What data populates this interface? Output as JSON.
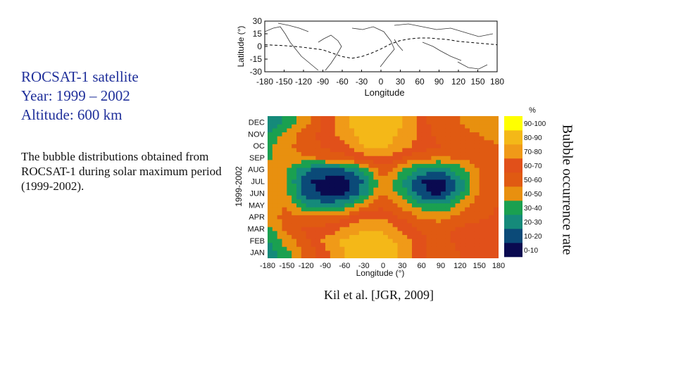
{
  "left_panel": {
    "title_lines": [
      "ROCSAT-1 satellite",
      "Year: 1999 – 2002",
      "Altitude: 600 km"
    ],
    "description": "The bubble distributions obtained from ROCSAT-1 during solar maximum period (1999-2002)."
  },
  "citation": "Kil et al. [JGR, 2009]",
  "colorbar_title": "Bubble occurrence rate",
  "colors": {
    "title_text": "#1f2f9a",
    "dip_equator": "#000000",
    "scale": [
      "#0a0a50",
      "#0b4a78",
      "#158a7a",
      "#1aa050",
      "#e8900f",
      "#e05a12",
      "#e1501a",
      "#f09a18",
      "#f4b818",
      "#ffff00"
    ]
  },
  "chart_data": [
    {
      "type": "line",
      "title": "",
      "xlabel": "Longitude",
      "ylabel": "Latitude (°)",
      "xlim": [
        -180,
        180
      ],
      "ylim": [
        -30,
        30
      ],
      "xticks": [
        "-180",
        "-150",
        "-120",
        "-90",
        "-60",
        "-30",
        "0",
        "30",
        "60",
        "90",
        "120",
        "150",
        "180"
      ],
      "yticks": [
        "30",
        "15",
        "0",
        "-15",
        "-30"
      ],
      "series": [
        {
          "x": [
            -180,
            -150,
            -120,
            -90,
            -75,
            -60,
            -45,
            -30,
            -15,
            0,
            15,
            30,
            45,
            60,
            75,
            90,
            105,
            120,
            135,
            150,
            165,
            180
          ],
          "y": [
            2,
            1,
            -1,
            -4,
            -8,
            -12,
            -14,
            -12,
            -8,
            -3,
            3,
            7,
            9,
            10,
            10,
            9,
            8,
            6,
            5,
            4,
            3,
            2
          ]
        }
      ]
    },
    {
      "type": "heatmap",
      "title": "",
      "xlabel": "Longitude (°)",
      "ylabel": "1999-2002",
      "xlim": [
        -180,
        180
      ],
      "xticks": [
        "-180",
        "-150",
        "-120",
        "-90",
        "-60",
        "-30",
        "0",
        "30",
        "60",
        "90",
        "120",
        "150",
        "180"
      ],
      "y": [
        "JAN",
        "FEB",
        "MAR",
        "APR",
        "MAY",
        "JUN",
        "JUL",
        "AUG",
        "SEP",
        "OCT",
        "NOV",
        "DEC"
      ],
      "y_display": [
        "JAN",
        "FEB",
        "MAR",
        "APR",
        "MAY",
        "JUN",
        "JUL",
        "AUG",
        "SEP",
        "OC",
        "NOV",
        "DEC"
      ],
      "x": [
        -180,
        -150,
        -120,
        -90,
        -60,
        -30,
        0,
        30,
        60,
        90,
        120,
        150,
        180
      ],
      "values": [
        [
          22,
          38,
          52,
          68,
          80,
          88,
          88,
          78,
          62,
          52,
          60,
          68,
          70
        ],
        [
          28,
          45,
          58,
          72,
          82,
          88,
          86,
          76,
          62,
          56,
          64,
          68,
          70
        ],
        [
          36,
          52,
          62,
          64,
          72,
          80,
          78,
          68,
          58,
          56,
          62,
          64,
          66
        ],
        [
          44,
          54,
          52,
          50,
          58,
          70,
          68,
          58,
          48,
          46,
          54,
          58,
          62
        ],
        [
          46,
          50,
          30,
          24,
          28,
          48,
          58,
          46,
          34,
          30,
          44,
          56,
          60
        ],
        [
          46,
          42,
          14,
          8,
          8,
          26,
          52,
          34,
          12,
          8,
          28,
          52,
          58
        ],
        [
          44,
          40,
          12,
          6,
          6,
          20,
          50,
          30,
          10,
          6,
          24,
          50,
          56
        ],
        [
          42,
          42,
          22,
          16,
          18,
          34,
          56,
          40,
          26,
          22,
          36,
          50,
          54
        ],
        [
          38,
          46,
          48,
          52,
          56,
          66,
          70,
          60,
          52,
          48,
          52,
          54,
          52
        ],
        [
          36,
          48,
          56,
          62,
          68,
          80,
          82,
          74,
          66,
          60,
          58,
          54,
          50
        ],
        [
          30,
          44,
          54,
          64,
          76,
          84,
          86,
          78,
          66,
          56,
          54,
          50,
          46
        ],
        [
          20,
          34,
          48,
          62,
          78,
          86,
          88,
          80,
          64,
          52,
          50,
          44,
          40
        ]
      ],
      "zlim": [
        0,
        100
      ],
      "legend_unit": "%",
      "legend_labels": [
        "0-10",
        "10-20",
        "20-30",
        "30-40",
        "40-50",
        "50-60",
        "60-70",
        "70-80",
        "80-90",
        "90-100"
      ]
    }
  ]
}
